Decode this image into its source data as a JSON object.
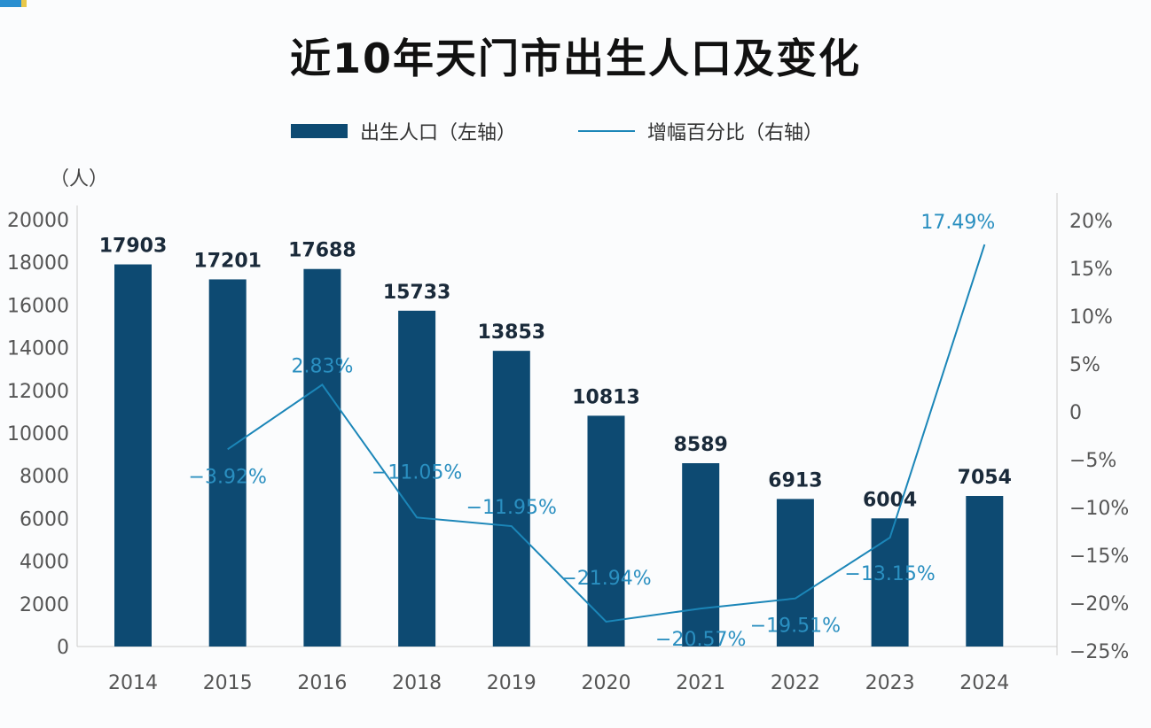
{
  "title": "近10年天门市出生人口及变化",
  "legend": {
    "bar": "出生人口（左轴）",
    "line": "增幅百分比（右轴）"
  },
  "unit_label": "（人）",
  "colors": {
    "bar": "#0d4a72",
    "line": "#1b86b8",
    "line_label": "#2a8fc0"
  },
  "chart_data": {
    "type": "bar+line",
    "title": "近10年天门市出生人口及变化",
    "categories": [
      "2014",
      "2015",
      "2016",
      "2018",
      "2019",
      "2020",
      "2021",
      "2022",
      "2023",
      "2024"
    ],
    "series": [
      {
        "name": "出生人口（左轴）",
        "type": "bar",
        "axis": "left",
        "values": [
          17903,
          17201,
          17688,
          15733,
          13853,
          10813,
          8589,
          6913,
          6004,
          7054
        ],
        "labels": [
          "17903",
          "17201",
          "17688",
          "15733",
          "13853",
          "10813",
          "8589",
          "6913",
          "6004",
          "7054"
        ]
      },
      {
        "name": "增幅百分比（右轴）",
        "type": "line",
        "axis": "right",
        "values": [
          null,
          -3.92,
          2.83,
          -11.05,
          -11.95,
          -21.94,
          -20.57,
          -19.51,
          -13.15,
          17.49
        ],
        "labels": [
          "",
          "-3.92%",
          "2.83%",
          "-11.05%",
          "-11.95%",
          "-21.94%",
          "-20.57%",
          "-19.51%",
          "-13.15%",
          "17.49%"
        ]
      }
    ],
    "left_axis": {
      "label": "（人）",
      "range": [
        0,
        20000
      ],
      "ticks": [
        "0",
        "2000",
        "4000",
        "6000",
        "8000",
        "10000",
        "12000",
        "14000",
        "16000",
        "18000",
        "20000"
      ]
    },
    "right_axis": {
      "range": [
        -25,
        20
      ],
      "ticks": [
        "-25%",
        "-20%",
        "-15%",
        "-10%",
        "-5%",
        "0",
        "5%",
        "10%",
        "15%",
        "20%"
      ]
    },
    "grid": false
  }
}
